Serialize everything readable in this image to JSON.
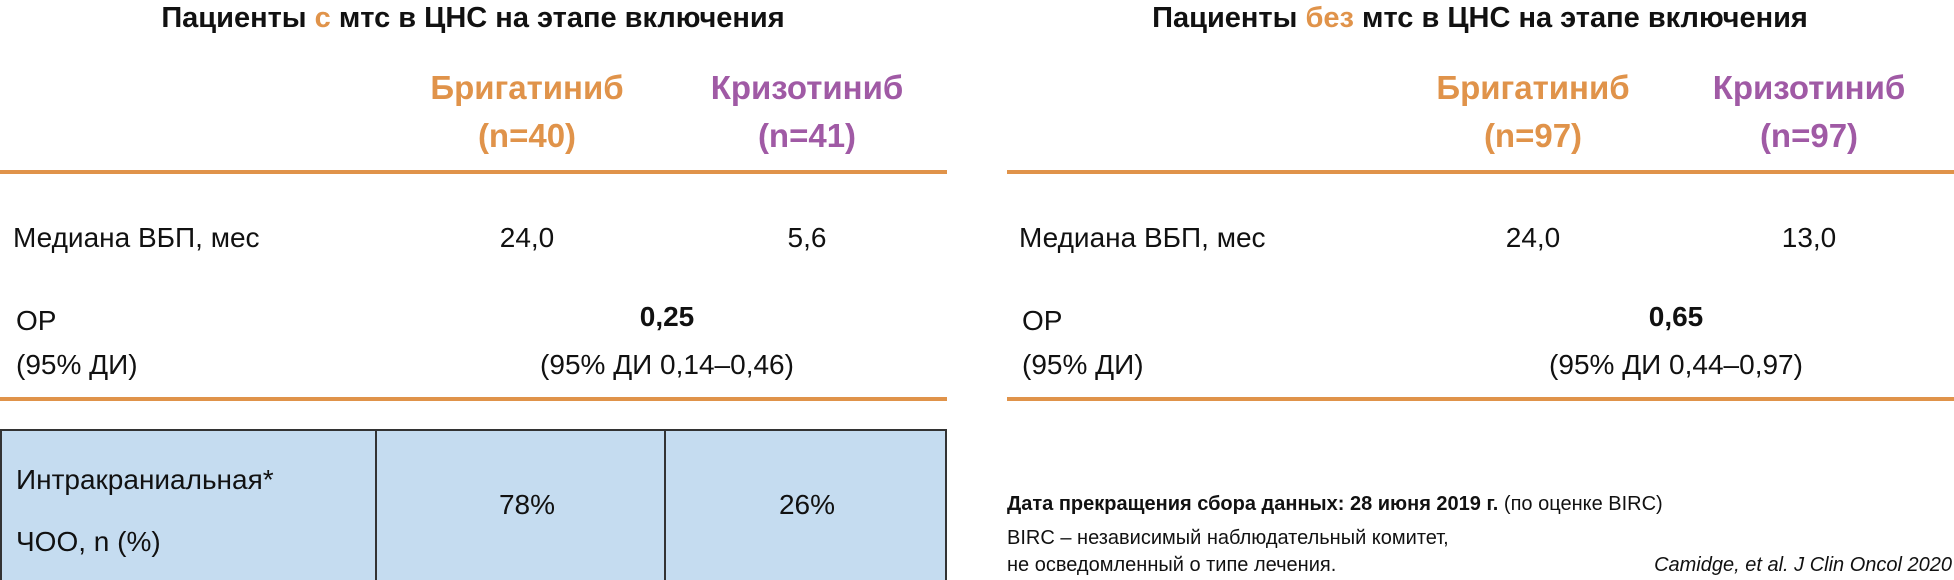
{
  "panels": [
    {
      "title": {
        "before": "Пациенты ",
        "highlight": "с",
        "after": " мтс в ЦНС на этапе включения"
      },
      "columns": [
        {
          "name": "Бригатиниб",
          "n": "(n=40)"
        },
        {
          "name": "Кризотиниб",
          "n": "(n=41)"
        }
      ],
      "median": {
        "label": "Медиана ВБП, мес",
        "values": [
          "24,0",
          "5,6"
        ]
      },
      "hr": {
        "label": [
          "ОР",
          "(95% ДИ)"
        ],
        "value": "0,25",
        "ci": "(95% ДИ 0,14–0,46)"
      },
      "orr": {
        "label": [
          "Интракраниальная*",
          "ЧОО, n (%)"
        ],
        "values": [
          "78%",
          "26%"
        ]
      }
    },
    {
      "title": {
        "before": "Пациенты ",
        "highlight": "без",
        "after": " мтс в ЦНС на этапе включения"
      },
      "columns": [
        {
          "name": "Бригатиниб",
          "n": "(n=97)"
        },
        {
          "name": "Кризотиниб",
          "n": "(n=97)"
        }
      ],
      "median": {
        "label": "Медиана ВБП, мес",
        "values": [
          "24,0",
          "13,0"
        ]
      },
      "hr": {
        "label": [
          "ОР",
          "(95% ДИ)"
        ],
        "value": "0,65",
        "ci": "(95% ДИ 0,44–0,97)"
      }
    }
  ],
  "footnote": {
    "bold": "Дата прекращения сбора данных: 28 июня 2019 г.",
    "normal": " (по оценке BIRC)",
    "lines": [
      "BIRC – независимый наблюдательный комитет,",
      "не осведомленный о типе лечения."
    ]
  },
  "citation": "Camidge, et al. J Clin Oncol 2020"
}
